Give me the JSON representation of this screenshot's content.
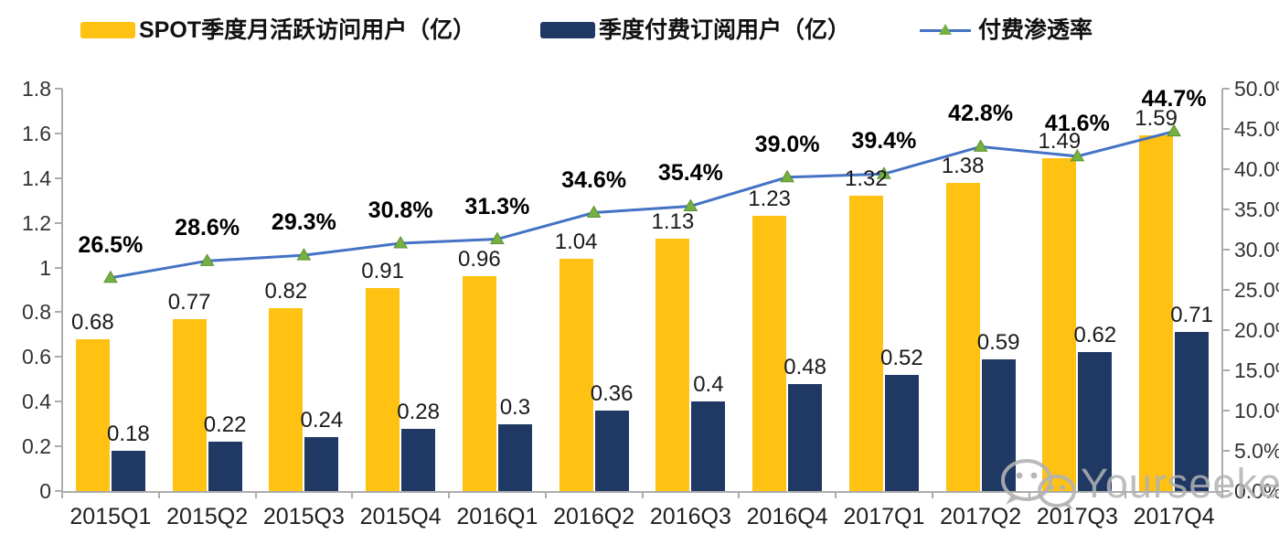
{
  "legend": {
    "items": [
      {
        "label": "SPOT季度月活跃访问用户（亿）",
        "swatch_color": "#FFC112",
        "type": "bar"
      },
      {
        "label": "季度付费订阅用户（亿）",
        "swatch_color": "#1F3864",
        "type": "bar"
      },
      {
        "label": "付费渗透率",
        "line_color": "#4472C4",
        "marker_color": "#76B041",
        "type": "line"
      }
    ]
  },
  "chart_data": {
    "type": "combo-grouped-bar-line",
    "categories": [
      "2015Q1",
      "2015Q2",
      "2015Q3",
      "2015Q4",
      "2016Q1",
      "2016Q2",
      "2016Q3",
      "2016Q4",
      "2017Q1",
      "2017Q2",
      "2017Q3",
      "2017Q4"
    ],
    "series": [
      {
        "name": "SPOT季度月活跃访问用户（亿）",
        "type": "bar",
        "axis": "left",
        "color": "#FFC112",
        "values": [
          0.68,
          0.77,
          0.82,
          0.91,
          0.96,
          1.04,
          1.13,
          1.23,
          1.32,
          1.38,
          1.49,
          1.59
        ],
        "labels": [
          "0.68",
          "0.77",
          "0.82",
          "0.91",
          "0.96",
          "1.04",
          "1.13",
          "1.23",
          "1.32",
          "1.38",
          "1.49",
          "1.59"
        ]
      },
      {
        "name": "季度付费订阅用户（亿）",
        "type": "bar",
        "axis": "left",
        "color": "#1F3864",
        "values": [
          0.18,
          0.22,
          0.24,
          0.28,
          0.3,
          0.36,
          0.4,
          0.48,
          0.52,
          0.59,
          0.62,
          0.71
        ],
        "labels": [
          "0.18",
          "0.22",
          "0.24",
          "0.28",
          "0.3",
          "0.36",
          "0.4",
          "0.48",
          "0.52",
          "0.59",
          "0.62",
          "0.71"
        ]
      },
      {
        "name": "付费渗透率",
        "type": "line",
        "axis": "right",
        "color": "#4472C4",
        "marker": "triangle",
        "marker_color": "#76B041",
        "marker_edge_color": "#5A9032",
        "values": [
          26.5,
          28.6,
          29.3,
          30.8,
          31.3,
          34.6,
          35.4,
          39.0,
          39.4,
          42.8,
          41.6,
          44.7
        ],
        "labels": [
          "26.5%",
          "28.6%",
          "29.3%",
          "30.8%",
          "31.3%",
          "34.6%",
          "35.4%",
          "39.0%",
          "39.4%",
          "42.8%",
          "41.6%",
          "44.7%"
        ]
      }
    ],
    "left_axis": {
      "min": 0,
      "max": 1.8,
      "step": 0.2,
      "labels": [
        "0",
        "0.2",
        "0.4",
        "0.6",
        "0.8",
        "1",
        "1.2",
        "1.4",
        "1.6",
        "1.8"
      ]
    },
    "right_axis": {
      "min": 0,
      "max": 50,
      "step": 5,
      "labels": [
        "0.0%",
        "5.0%",
        "10.0%",
        "15.0%",
        "20.0%",
        "25.0%",
        "30.0%",
        "35.0%",
        "40.0%",
        "45.0%",
        "50.0%"
      ]
    },
    "grid": false,
    "legend_position": "top",
    "axis_color": "#ACACAC"
  },
  "watermark": {
    "text": "Yourseeker",
    "icon": "wechat-icon"
  }
}
